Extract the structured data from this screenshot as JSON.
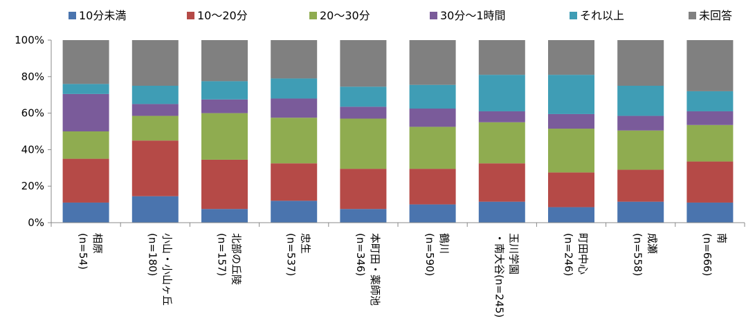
{
  "chart_data": {
    "type": "bar",
    "stacked": true,
    "normalized": true,
    "orientation": "vertical",
    "ylim": [
      0,
      100
    ],
    "yticks": [
      "0%",
      "20%",
      "40%",
      "60%",
      "80%",
      "100%"
    ],
    "grid": false,
    "legend_position": "top",
    "categories": [
      {
        "line1": "相原",
        "line2": "(n=54)"
      },
      {
        "line1": "小山・小山ヶ丘",
        "line2": "(n=180)"
      },
      {
        "line1": "北部の丘陵",
        "line2": "(n=157)"
      },
      {
        "line1": "忠生",
        "line2": "(n=537)"
      },
      {
        "line1": "本町田・薬師池",
        "line2": "(n=346)"
      },
      {
        "line1": "鶴川",
        "line2": "(n=590)"
      },
      {
        "line1": "玉川学園",
        "line2": "・南大谷(n=245)"
      },
      {
        "line1": "町田中心",
        "line2": "(n=246)"
      },
      {
        "line1": "成瀬",
        "line2": "(n=558)"
      },
      {
        "line1": "南",
        "line2": "(n=666)"
      }
    ],
    "series": [
      {
        "name": "10分未満",
        "color": "#4a74ae",
        "values": [
          11,
          14.5,
          7.5,
          12,
          7.5,
          10,
          11.5,
          8.5,
          11.5,
          11
        ]
      },
      {
        "name": "10〜20分",
        "color": "#b54a47",
        "values": [
          24,
          30.5,
          27,
          20.5,
          22,
          19.5,
          21,
          19,
          17.5,
          22.5
        ]
      },
      {
        "name": "20〜30分",
        "color": "#8fac50",
        "values": [
          15,
          13.5,
          25.5,
          25,
          27.5,
          23,
          22.5,
          24,
          21.5,
          20
        ]
      },
      {
        "name": "30分〜1時間",
        "color": "#7a5b9a",
        "values": [
          20.5,
          6.5,
          7.5,
          10.5,
          6.5,
          10,
          6,
          8,
          8,
          7.5
        ]
      },
      {
        "name": "それ以上",
        "color": "#3f9db5",
        "values": [
          5.5,
          10,
          10,
          11,
          11,
          13,
          20,
          21.5,
          16.5,
          11
        ]
      },
      {
        "name": "未回答",
        "color": "#808080",
        "values": [
          24,
          25,
          22.5,
          21,
          25.5,
          24.5,
          19,
          19,
          25,
          28
        ]
      }
    ]
  }
}
